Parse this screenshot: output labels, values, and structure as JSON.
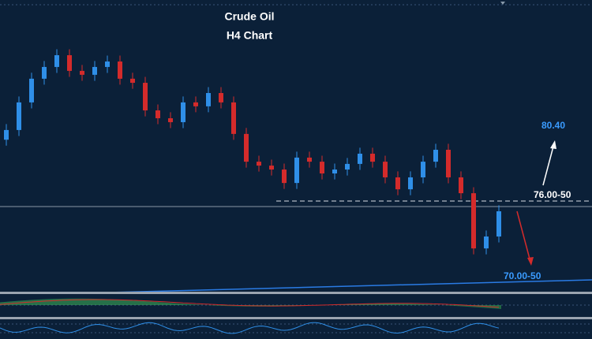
{
  "chart_data": {
    "type": "candlestick",
    "title": "Crude Oil",
    "subtitle": "H4 Chart",
    "open": [
      79.6,
      80.17,
      81.79,
      83.18,
      83.87,
      84.56,
      83.64,
      83.41,
      83.87,
      84.19,
      83.18,
      82.94,
      81.32,
      80.86,
      80.63,
      81.79,
      81.56,
      82.34,
      81.79,
      79.94,
      78.31,
      78.08,
      77.85,
      77.06,
      78.55,
      78.31,
      77.62,
      77.85,
      78.18,
      78.78,
      78.31,
      77.39,
      76.69,
      77.39,
      78.31,
      79.01,
      77.39,
      76.46,
      73.22,
      73.92
    ],
    "high": [
      80.52,
      82.14,
      83.53,
      84.22,
      84.91,
      84.91,
      83.99,
      84.22,
      84.54,
      84.54,
      83.53,
      83.29,
      81.67,
      81.21,
      82.14,
      82.14,
      82.69,
      82.69,
      82.14,
      80.29,
      78.66,
      78.43,
      78.2,
      78.9,
      78.9,
      78.66,
      78.2,
      78.53,
      79.13,
      79.13,
      78.66,
      77.74,
      77.74,
      78.66,
      79.36,
      79.36,
      77.74,
      76.81,
      74.27,
      75.75
    ],
    "low": [
      79.25,
      79.82,
      81.44,
      82.83,
      83.52,
      83.29,
      83.06,
      83.06,
      83.52,
      82.83,
      82.59,
      80.97,
      80.51,
      80.28,
      80.28,
      81.21,
      81.21,
      81.44,
      79.59,
      77.96,
      77.73,
      77.5,
      76.71,
      76.71,
      77.96,
      77.27,
      77.27,
      77.5,
      77.83,
      77.96,
      77.04,
      76.34,
      76.34,
      77.04,
      77.96,
      77.04,
      76.11,
      72.87,
      72.87,
      73.57
    ],
    "close": [
      80.17,
      81.79,
      83.18,
      83.87,
      84.56,
      83.64,
      83.41,
      83.87,
      84.19,
      83.18,
      82.94,
      81.32,
      80.86,
      80.63,
      81.79,
      81.56,
      82.34,
      81.79,
      79.94,
      78.31,
      78.08,
      77.85,
      77.06,
      78.55,
      78.31,
      77.62,
      77.85,
      78.18,
      78.78,
      78.31,
      77.39,
      76.69,
      77.39,
      78.31,
      79.01,
      77.39,
      76.46,
      73.22,
      73.92,
      75.4
    ],
    "up_color": "#2f8fe8",
    "down_color": "#d42b2b",
    "ylim": [
      70.68,
      87.8
    ],
    "annotations": [
      "80.40",
      "76.00-50",
      "70.00-50"
    ]
  }
}
